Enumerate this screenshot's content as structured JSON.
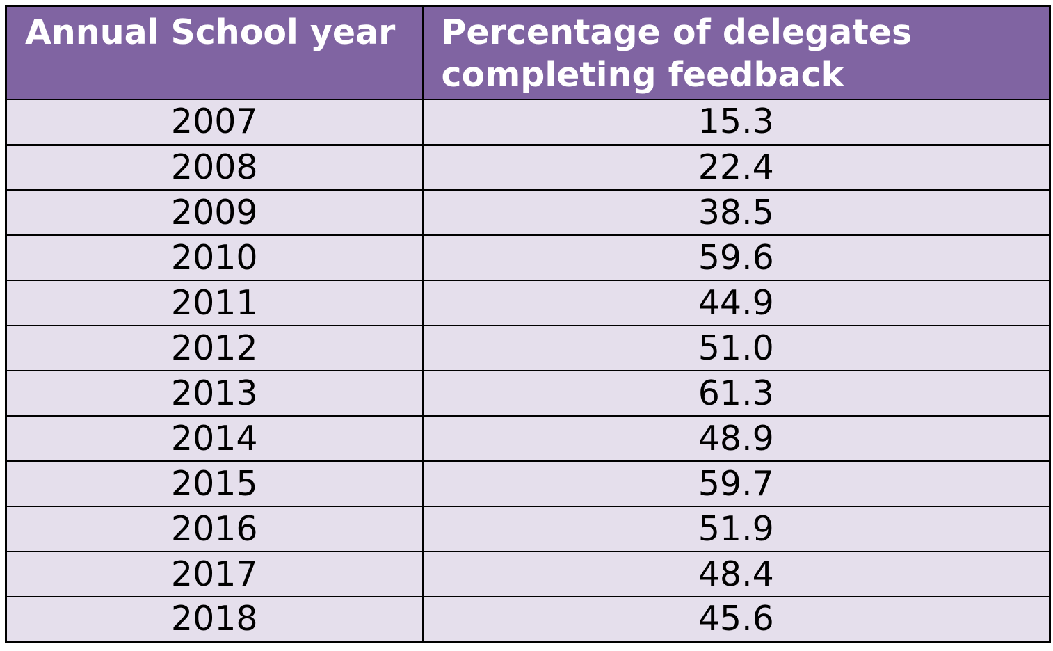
{
  "table": {
    "columns": [
      "Annual School year",
      "Percentage of delegates completing feedback"
    ],
    "colors": {
      "header_bg": "#8064a2",
      "header_text": "#ffffff",
      "row_bg": "#e5dfec",
      "border": "#000000"
    },
    "rows": [
      {
        "year": "2007",
        "percentage": "15.3"
      },
      {
        "year": "2008",
        "percentage": "22.4"
      },
      {
        "year": "2009",
        "percentage": "38.5"
      },
      {
        "year": "2010",
        "percentage": "59.6"
      },
      {
        "year": "2011",
        "percentage": "44.9"
      },
      {
        "year": "2012",
        "percentage": "51.0"
      },
      {
        "year": "2013",
        "percentage": "61.3"
      },
      {
        "year": "2014",
        "percentage": "48.9"
      },
      {
        "year": "2015",
        "percentage": "59.7"
      },
      {
        "year": "2016",
        "percentage": "51.9"
      },
      {
        "year": "2017",
        "percentage": "48.4"
      },
      {
        "year": "2018",
        "percentage": "45.6"
      }
    ]
  }
}
